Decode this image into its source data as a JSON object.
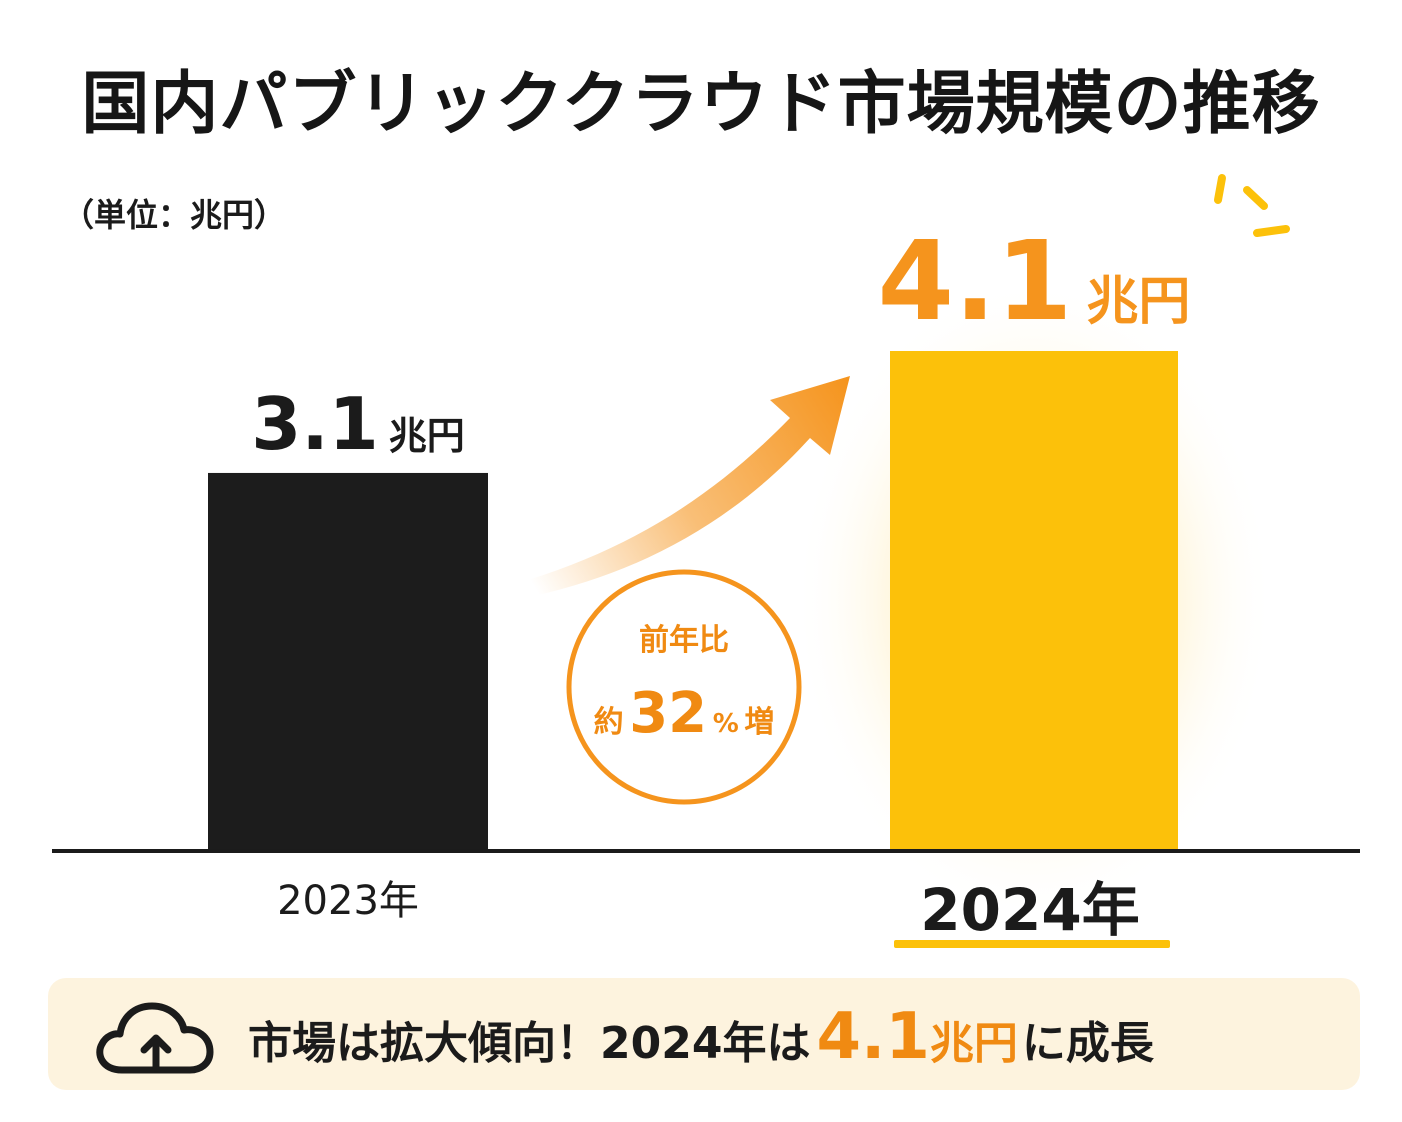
{
  "title": "国内パブリッククラウド市場規模の推移",
  "unit_label": "（単位：兆円）",
  "chart_data": {
    "type": "bar",
    "categories": [
      "2023年",
      "2024年"
    ],
    "values": [
      3.1,
      4.1
    ],
    "value_unit": "兆円",
    "value_labels": [
      "3.1",
      "4.1"
    ],
    "colors": [
      "#1c1c1c",
      "#fcc10a"
    ],
    "highlight_color": "#f5941d",
    "axis_color": "#1b1b1b",
    "ylim": [
      0,
      4.1
    ],
    "annotation": {
      "line1": "前年比",
      "prefix": "約",
      "number": "32",
      "percent": "%",
      "suffix": "増"
    }
  },
  "summary": {
    "text_before": "市場は拡大傾向！2024年は",
    "highlight_value": "4.1",
    "highlight_unit": "兆円",
    "text_after": "に成長",
    "icon": "cloud-upload-icon",
    "background": "#fdf3de"
  }
}
